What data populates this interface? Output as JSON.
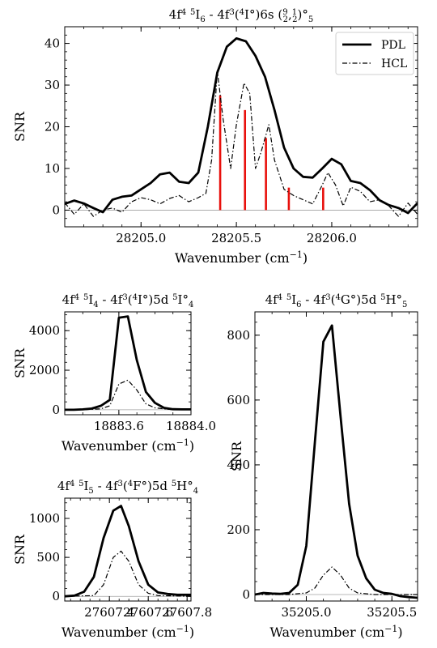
{
  "chart_data": [
    {
      "id": "top",
      "type": "line",
      "title_html": "4f<tspan dy=\"-5\" font-size=\"10\">4</tspan><tspan dy=\"5\"> </tspan><tspan dy=\"-5\" font-size=\"10\">5</tspan><tspan dy=\"5\">I</tspan><tspan dy=\"4\" font-size=\"10\">6</tspan><tspan dy=\"-4\"> - 4f</tspan><tspan dy=\"-5\" font-size=\"10\">3</tspan><tspan dy=\"5\">(</tspan><tspan dy=\"-5\" font-size=\"10\">4</tspan><tspan dy=\"5\">I°)6s (</tspan><tspan dy=\"-5\" font-size=\"10\">9</tspan><tspan dy=\"9\" dx=\"-6\" font-size=\"10\">2</tspan><tspan dy=\"-4\">,</tspan><tspan dy=\"-5\" font-size=\"10\">1</tspan><tspan dy=\"9\" dx=\"-6\" font-size=\"10\">2</tspan><tspan dy=\"-4\">)°</tspan><tspan dy=\"4\" font-size=\"10\">5</tspan>",
      "xlabel": "Wavenumber (cm",
      "xlabel_sup": "−1",
      "xlabel_end": ")",
      "ylabel": "SNR",
      "xlim": [
        28204.6,
        28206.45
      ],
      "ylim": [
        -4,
        44
      ],
      "xticks": [
        28205.0,
        28205.5,
        28206.0
      ],
      "xtick_labels": [
        "28205.0",
        "28205.5",
        "28206.0"
      ],
      "xminor_step": 0.1,
      "yticks": [
        0,
        10,
        20,
        30,
        40
      ],
      "ytick_labels": [
        "0",
        "10",
        "20",
        "30",
        "40"
      ],
      "yminor_step": 2,
      "legend": {
        "position": "top-right",
        "entries": [
          "PDL",
          "HCL"
        ]
      },
      "series": [
        {
          "name": "PDL",
          "style": "solid",
          "x": [
            28204.6,
            28204.65,
            28204.7,
            28204.75,
            28204.8,
            28204.85,
            28204.9,
            28204.95,
            28205.0,
            28205.05,
            28205.1,
            28205.15,
            28205.2,
            28205.25,
            28205.3,
            28205.35,
            28205.4,
            28205.45,
            28205.5,
            28205.55,
            28205.6,
            28205.65,
            28205.7,
            28205.75,
            28205.8,
            28205.85,
            28205.9,
            28205.95,
            28206.0,
            28206.05,
            28206.1,
            28206.15,
            28206.2,
            28206.25,
            28206.3,
            28206.35,
            28206.4,
            28206.45
          ],
          "y": [
            1.5,
            2.3,
            1.6,
            0.5,
            -0.5,
            2.5,
            3.2,
            3.5,
            5.0,
            6.5,
            8.6,
            9.0,
            6.8,
            6.5,
            9.0,
            20.0,
            33.0,
            39.2,
            41.2,
            40.5,
            37.0,
            32.0,
            24.0,
            15.0,
            10.0,
            8.0,
            7.8,
            10.0,
            12.3,
            11.0,
            7.0,
            6.5,
            4.8,
            2.4,
            1.2,
            0.5,
            -0.7,
            1.7
          ]
        },
        {
          "name": "HCL",
          "style": "dashdot",
          "x": [
            28204.6,
            28204.65,
            28204.7,
            28204.75,
            28204.8,
            28204.85,
            28204.9,
            28204.95,
            28205.0,
            28205.05,
            28205.1,
            28205.15,
            28205.2,
            28205.25,
            28205.3,
            28205.34,
            28205.37,
            28205.4,
            28205.43,
            28205.47,
            28205.5,
            28205.54,
            28205.57,
            28205.6,
            28205.63,
            28205.67,
            28205.7,
            28205.75,
            28205.8,
            28205.85,
            28205.9,
            28205.95,
            28205.98,
            28206.02,
            28206.06,
            28206.1,
            28206.15,
            28206.2,
            28206.25,
            28206.3,
            28206.35,
            28206.4,
            28206.45
          ],
          "y": [
            1.8,
            -1.0,
            1.5,
            -1.5,
            0.0,
            0.5,
            -0.5,
            2.0,
            3.0,
            2.5,
            1.5,
            2.8,
            3.5,
            2.0,
            3.0,
            4.0,
            12.0,
            33.5,
            22.0,
            10.0,
            20.5,
            30.5,
            28.0,
            10.0,
            14.0,
            20.5,
            12.0,
            5.0,
            3.5,
            2.5,
            1.5,
            6.0,
            9.0,
            6.0,
            1.0,
            5.5,
            4.5,
            2.0,
            2.5,
            1.0,
            -1.5,
            1.7,
            -1.0
          ]
        }
      ],
      "markers": {
        "color": "#e8100c",
        "x": [
          28205.415,
          28205.545,
          28205.655,
          28205.775,
          28205.955
        ],
        "y": [
          27.5,
          24.0,
          17.3,
          5.4,
          5.4
        ]
      }
    },
    {
      "id": "left-middle",
      "type": "line",
      "title_html": "4f<tspan dy=\"-5\" font-size=\"10\">4</tspan><tspan dy=\"5\"> </tspan><tspan dy=\"-5\" font-size=\"10\">5</tspan><tspan dy=\"5\">I</tspan><tspan dy=\"4\" font-size=\"10\">4</tspan><tspan dy=\"-4\"> - 4f</tspan><tspan dy=\"-5\" font-size=\"10\">3</tspan><tspan dy=\"5\">(</tspan><tspan dy=\"-5\" font-size=\"10\">4</tspan><tspan dy=\"5\">I°)5d </tspan><tspan dy=\"-5\" font-size=\"10\">5</tspan><tspan dy=\"5\">I°</tspan><tspan dy=\"4\" font-size=\"10\">4</tspan>",
      "xlabel": "Wavenumber (cm",
      "xlabel_sup": "−1",
      "xlabel_end": ")",
      "ylabel": "SNR",
      "xlim": [
        18883.3,
        18884.0
      ],
      "ylim": [
        -250,
        4950
      ],
      "xticks": [
        18883.6,
        18884.0
      ],
      "xtick_labels": [
        "18883.6",
        "18884.0"
      ],
      "xminor_step": 0.1,
      "yticks": [
        0,
        2000,
        4000
      ],
      "ytick_labels": [
        "0",
        "2000",
        "4000"
      ],
      "yminor_step": 400,
      "series": [
        {
          "name": "PDL",
          "style": "solid",
          "x": [
            18883.3,
            18883.35,
            18883.4,
            18883.45,
            18883.5,
            18883.55,
            18883.6,
            18883.65,
            18883.7,
            18883.75,
            18883.8,
            18883.85,
            18883.9,
            18883.95,
            18884.0
          ],
          "y": [
            0,
            0,
            20,
            60,
            200,
            500,
            4650,
            4720,
            2500,
            900,
            350,
            100,
            30,
            20,
            20
          ]
        },
        {
          "name": "HCL",
          "style": "dashdot",
          "x": [
            18883.3,
            18883.4,
            18883.5,
            18883.55,
            18883.6,
            18883.65,
            18883.7,
            18883.75,
            18883.8,
            18883.9,
            18884.0
          ],
          "y": [
            0,
            0,
            50,
            200,
            1300,
            1500,
            1000,
            300,
            100,
            0,
            0
          ]
        }
      ]
    },
    {
      "id": "left-bottom",
      "type": "line",
      "title_html": "4f<tspan dy=\"-5\" font-size=\"10\">4</tspan><tspan dy=\"5\"> </tspan><tspan dy=\"-5\" font-size=\"10\">5</tspan><tspan dy=\"5\">I</tspan><tspan dy=\"4\" font-size=\"10\">5</tspan><tspan dy=\"-4\"> - 4f</tspan><tspan dy=\"-5\" font-size=\"10\">3</tspan><tspan dy=\"5\">(</tspan><tspan dy=\"-5\" font-size=\"10\">4</tspan><tspan dy=\"5\">F°)5d </tspan><tspan dy=\"-5\" font-size=\"10\">5</tspan><tspan dy=\"5\">H°</tspan><tspan dy=\"4\" font-size=\"10\">4</tspan>",
      "xlabel": "Wavenumber (cm",
      "xlabel_sup": "−1",
      "xlabel_end": ")",
      "ylabel": "SNR",
      "xlim": [
        27607.17,
        27607.82
      ],
      "ylim": [
        -60,
        1260
      ],
      "xticks": [
        27607.4,
        27607.6,
        27607.8
      ],
      "xtick_labels": [
        "27607.4",
        "27607.6",
        "27607.8"
      ],
      "xminor_step": 0.05,
      "yticks": [
        0,
        500,
        1000
      ],
      "ytick_labels": [
        "0",
        "500",
        "1000"
      ],
      "yminor_step": 100,
      "series": [
        {
          "name": "PDL",
          "style": "solid",
          "x": [
            27607.17,
            27607.22,
            27607.27,
            27607.32,
            27607.37,
            27607.42,
            27607.46,
            27607.5,
            27607.55,
            27607.6,
            27607.65,
            27607.7,
            27607.75,
            27607.82
          ],
          "y": [
            0,
            10,
            60,
            250,
            750,
            1100,
            1160,
            900,
            450,
            150,
            50,
            30,
            20,
            20
          ]
        },
        {
          "name": "HCL",
          "style": "dashdot",
          "x": [
            27607.17,
            27607.32,
            27607.37,
            27607.42,
            27607.46,
            27607.5,
            27607.55,
            27607.6,
            27607.65,
            27607.82
          ],
          "y": [
            0,
            10,
            150,
            500,
            580,
            450,
            150,
            40,
            10,
            0
          ]
        }
      ]
    },
    {
      "id": "right",
      "type": "line",
      "title_html": "4f<tspan dy=\"-5\" font-size=\"10\">4</tspan><tspan dy=\"5\"> </tspan><tspan dy=\"-5\" font-size=\"10\">5</tspan><tspan dy=\"5\">I</tspan><tspan dy=\"4\" font-size=\"10\">6</tspan><tspan dy=\"-4\"> - 4f</tspan><tspan dy=\"-5\" font-size=\"10\">3</tspan><tspan dy=\"5\">(</tspan><tspan dy=\"-5\" font-size=\"10\">4</tspan><tspan dy=\"5\">G°)5d </tspan><tspan dy=\"-5\" font-size=\"10\">5</tspan><tspan dy=\"5\">H°</tspan><tspan dy=\"4\" font-size=\"10\">5</tspan>",
      "xlabel": "Wavenumber (cm",
      "xlabel_sup": "−1",
      "xlabel_end": ")",
      "ylabel": "SNR",
      "xlim": [
        35204.7,
        35205.65
      ],
      "ylim": [
        -20,
        872
      ],
      "xticks": [
        35205.0,
        35205.5
      ],
      "xtick_labels": [
        "35205.0",
        "35205.5"
      ],
      "xminor_step": 0.1,
      "yticks": [
        0,
        200,
        400,
        600,
        800
      ],
      "ytick_labels": [
        "0",
        "200",
        "400",
        "600",
        "800"
      ],
      "yminor_step": 40,
      "series": [
        {
          "name": "PDL",
          "style": "solid",
          "x": [
            35204.7,
            35204.75,
            35204.8,
            35204.85,
            35204.9,
            35204.95,
            35205.0,
            35205.05,
            35205.1,
            35205.15,
            35205.2,
            35205.25,
            35205.3,
            35205.35,
            35205.4,
            35205.45,
            35205.5,
            35205.55,
            35205.6,
            35205.65
          ],
          "y": [
            0,
            5,
            3,
            2,
            5,
            30,
            150,
            470,
            780,
            830,
            550,
            280,
            120,
            50,
            15,
            5,
            2,
            -5,
            -8,
            -10
          ]
        },
        {
          "name": "HCL",
          "style": "dashdot",
          "x": [
            35204.7,
            35204.8,
            35204.9,
            35205.0,
            35205.05,
            35205.1,
            35205.15,
            35205.2,
            35205.25,
            35205.3,
            35205.4,
            35205.5,
            35205.65
          ],
          "y": [
            0,
            0,
            0,
            5,
            20,
            60,
            85,
            60,
            20,
            5,
            0,
            0,
            0
          ]
        }
      ]
    }
  ]
}
